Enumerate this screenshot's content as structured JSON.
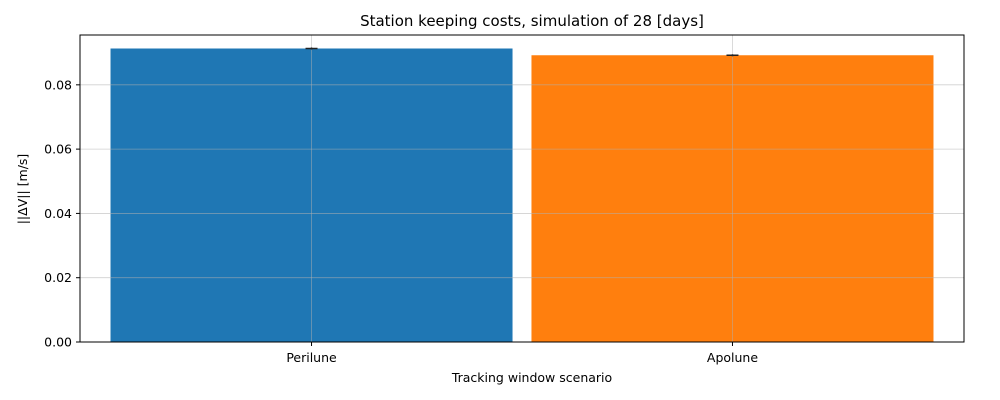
{
  "chart_data": {
    "type": "bar",
    "title": "Station keeping costs, simulation of 28 [days]",
    "xlabel": "Tracking window scenario",
    "ylabel": "||ΔV|| [m/s]",
    "categories": [
      "Perilune",
      "Apolune"
    ],
    "values": [
      0.0913,
      0.0892
    ],
    "errors": [
      0.0003,
      0.0003
    ],
    "colors": [
      "#1f77b4",
      "#ff7f0e"
    ],
    "ylim": [
      0,
      0.0955
    ],
    "yticks": [
      0.0,
      0.02,
      0.04,
      0.06,
      0.08
    ],
    "ytick_labels": [
      "0.00",
      "0.02",
      "0.04",
      "0.06",
      "0.08"
    ],
    "grid": true,
    "legend": "none"
  }
}
